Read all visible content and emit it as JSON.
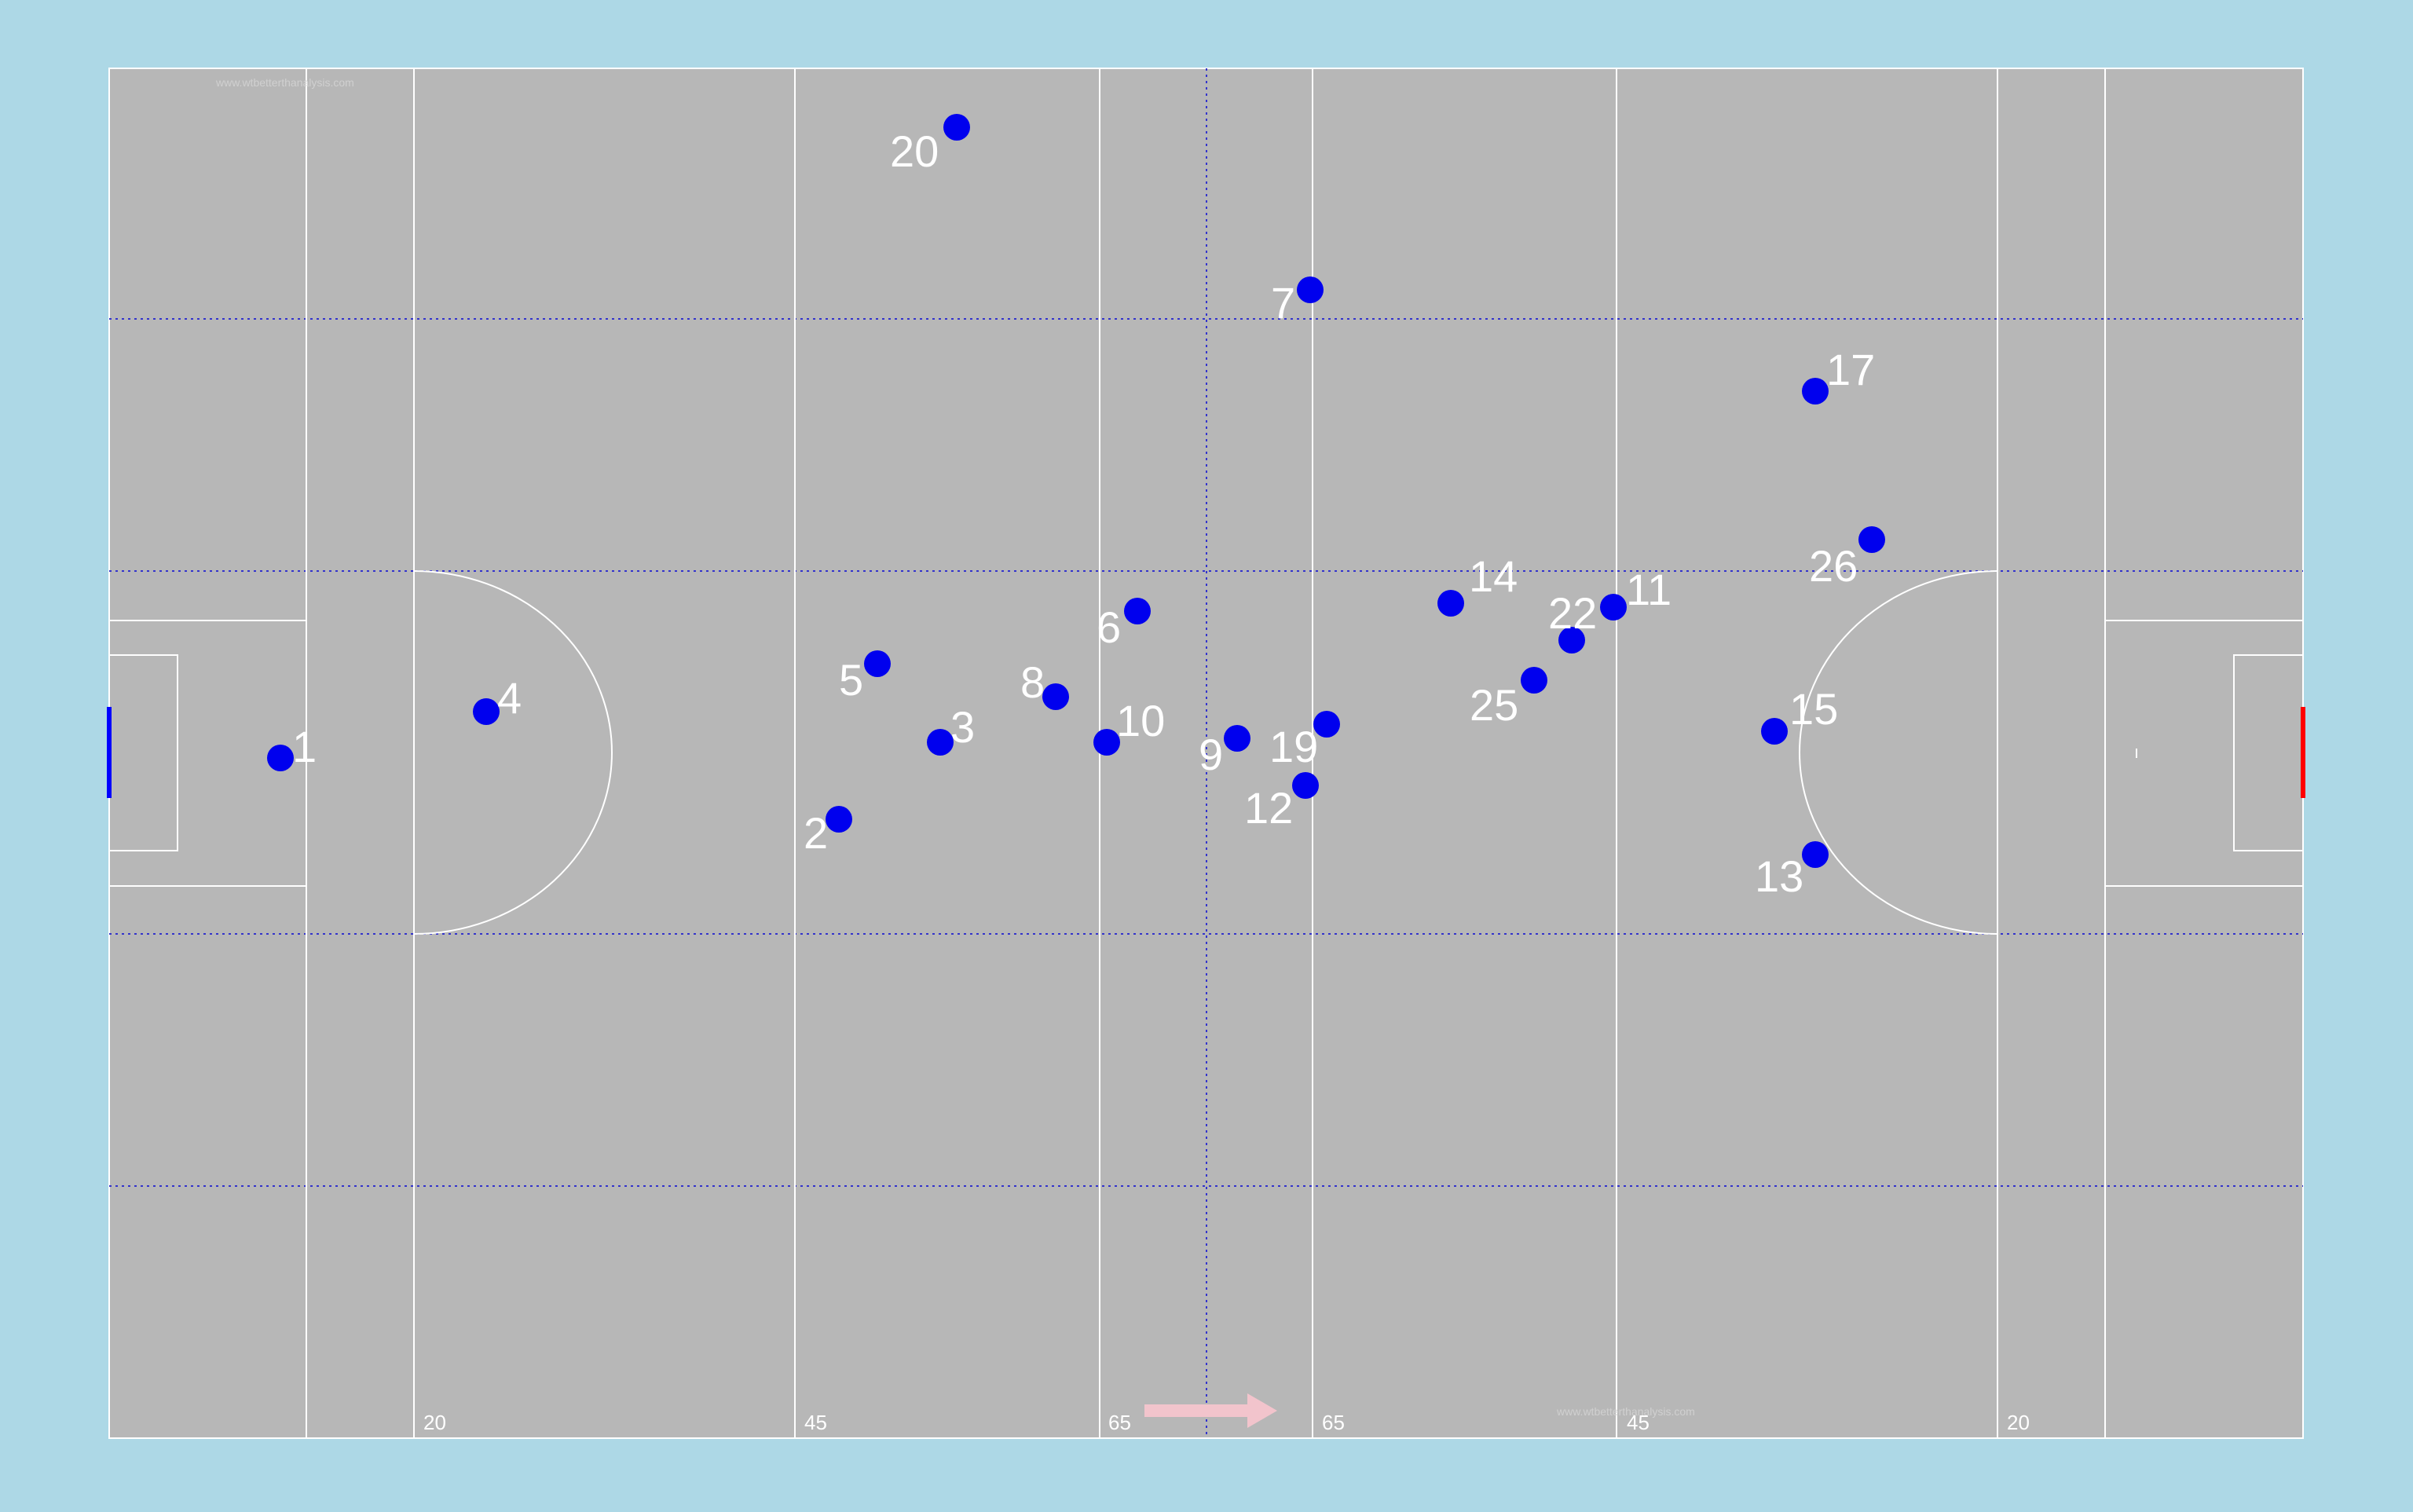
{
  "pitch": {
    "colors": {
      "background": "#add8e6",
      "field": "#b7b7b7",
      "lines": "#ffffff",
      "zone_lines": "#3333cc",
      "player": "#0000ee",
      "label": "#ffffff",
      "left_goal": "#0000ff",
      "right_goal": "#ff0000",
      "direction_arrow": "#f2c4cc"
    },
    "watermark": "www.wtbetterthanalysis.com",
    "line_labels": [
      "20",
      "45",
      "65",
      "65",
      "45",
      "20"
    ],
    "attack_direction": "right",
    "players": [
      {
        "number": "1"
      },
      {
        "number": "4"
      },
      {
        "number": "20"
      },
      {
        "number": "7"
      },
      {
        "number": "17"
      },
      {
        "number": "26"
      },
      {
        "number": "14"
      },
      {
        "number": "11"
      },
      {
        "number": "22"
      },
      {
        "number": "6"
      },
      {
        "number": "5"
      },
      {
        "number": "8"
      },
      {
        "number": "3"
      },
      {
        "number": "10"
      },
      {
        "number": "2"
      },
      {
        "number": "9"
      },
      {
        "number": "19"
      },
      {
        "number": "12"
      },
      {
        "number": "25"
      },
      {
        "number": "15"
      },
      {
        "number": "13"
      }
    ]
  }
}
